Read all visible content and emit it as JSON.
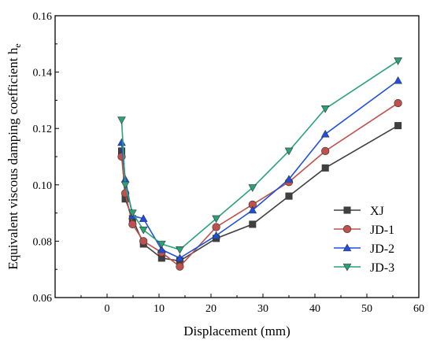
{
  "chart_data": {
    "type": "line",
    "xlabel": "Displacement (mm)",
    "ylabel_main": "Equivalent viscous damping coefficient h",
    "ylabel_sub": "e",
    "xlim": [
      -10,
      60
    ],
    "ylim": [
      0.06,
      0.16
    ],
    "xticks": [
      0,
      10,
      20,
      30,
      40,
      50,
      60
    ],
    "yticks": [
      0.06,
      0.08,
      0.1,
      0.12,
      0.14,
      0.16
    ],
    "ytick_labels": [
      "0.06",
      "0.08",
      "0.10",
      "0.12",
      "0.14",
      "0.16"
    ],
    "legend_position": "center-right",
    "series": [
      {
        "name": "XJ",
        "color": "#404040",
        "marker": "square",
        "x": [
          2.8,
          3.5,
          4.9,
          7.0,
          10.5,
          14.0,
          21.0,
          28.0,
          35.0,
          42.0,
          56.0
        ],
        "y": [
          0.112,
          0.095,
          0.088,
          0.079,
          0.074,
          0.073,
          0.081,
          0.086,
          0.096,
          0.106,
          0.121
        ]
      },
      {
        "name": "JD-1",
        "color": "#c0504d",
        "marker": "circle",
        "x": [
          2.8,
          3.5,
          4.9,
          7.0,
          10.5,
          14.0,
          21.0,
          28.0,
          35.0,
          42.0,
          56.0
        ],
        "y": [
          0.11,
          0.097,
          0.086,
          0.08,
          0.076,
          0.071,
          0.085,
          0.093,
          0.101,
          0.112,
          0.129
        ]
      },
      {
        "name": "JD-2",
        "color": "#1f4fe0",
        "marker": "triangle-up",
        "x": [
          2.8,
          3.5,
          4.9,
          7.0,
          10.5,
          14.0,
          21.0,
          28.0,
          35.0,
          42.0,
          56.0
        ],
        "y": [
          0.115,
          0.102,
          0.089,
          0.088,
          0.077,
          0.074,
          0.082,
          0.091,
          0.102,
          0.118,
          0.137
        ]
      },
      {
        "name": "JD-3",
        "color": "#2aa278",
        "marker": "triangle-down",
        "x": [
          2.8,
          3.5,
          4.9,
          7.0,
          10.5,
          14.0,
          21.0,
          28.0,
          35.0,
          42.0,
          56.0
        ],
        "y": [
          0.123,
          0.1,
          0.09,
          0.084,
          0.079,
          0.077,
          0.088,
          0.099,
          0.112,
          0.127,
          0.144
        ]
      }
    ]
  }
}
